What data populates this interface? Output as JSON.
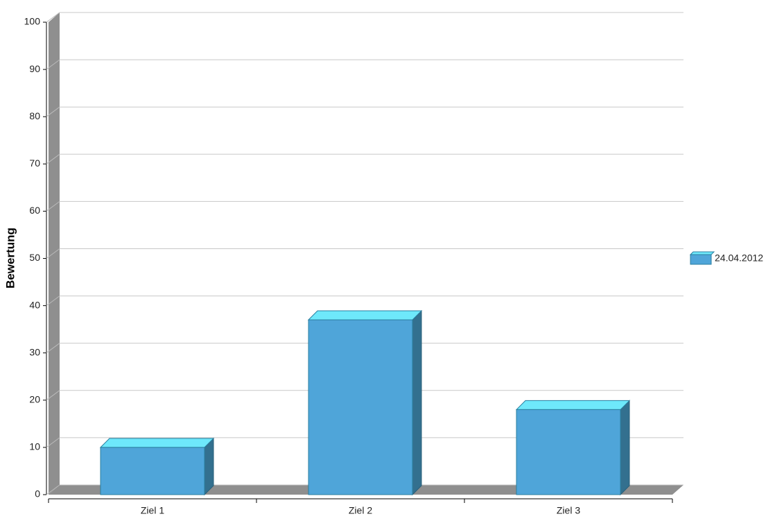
{
  "chart_data": {
    "type": "bar",
    "ylabel": "Bewertung",
    "categories": [
      "Ziel 1",
      "Ziel 2",
      "Ziel 3"
    ],
    "series": [
      {
        "name": "24.04.2012",
        "color": "#4fa5d9",
        "values": [
          10,
          37,
          18
        ]
      }
    ],
    "ylim": [
      0,
      100
    ],
    "yticks": [
      0,
      10,
      20,
      30,
      40,
      50,
      60,
      70,
      80,
      90,
      100
    ],
    "grid": true,
    "legend": "right"
  }
}
